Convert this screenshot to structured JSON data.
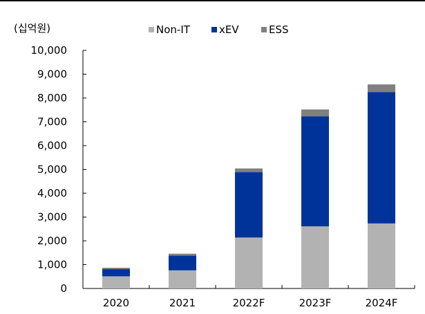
{
  "chart_data": {
    "type": "bar",
    "stacked": true,
    "unit_label": "(십억원)",
    "categories": [
      "2020",
      "2021",
      "2022F",
      "2023F",
      "2024F"
    ],
    "series": [
      {
        "name": "Non-IT",
        "color": "#b2b2b2",
        "values": [
          510,
          760,
          2140,
          2610,
          2730
        ]
      },
      {
        "name": "xEV",
        "color": "#003399",
        "values": [
          300,
          620,
          2750,
          4620,
          5520
        ]
      },
      {
        "name": "ESS",
        "color": "#808080",
        "values": [
          60,
          80,
          150,
          290,
          320
        ]
      }
    ],
    "ylim": [
      0,
      10000
    ],
    "yticks": [
      0,
      1000,
      2000,
      3000,
      4000,
      5000,
      6000,
      7000,
      8000,
      9000,
      10000
    ],
    "ytick_labels": [
      "0",
      "1,000",
      "2,000",
      "3,000",
      "4,000",
      "5,000",
      "6,000",
      "7,000",
      "8,000",
      "9,000",
      "10,000"
    ],
    "legend_position": "top-center",
    "grid": false
  }
}
